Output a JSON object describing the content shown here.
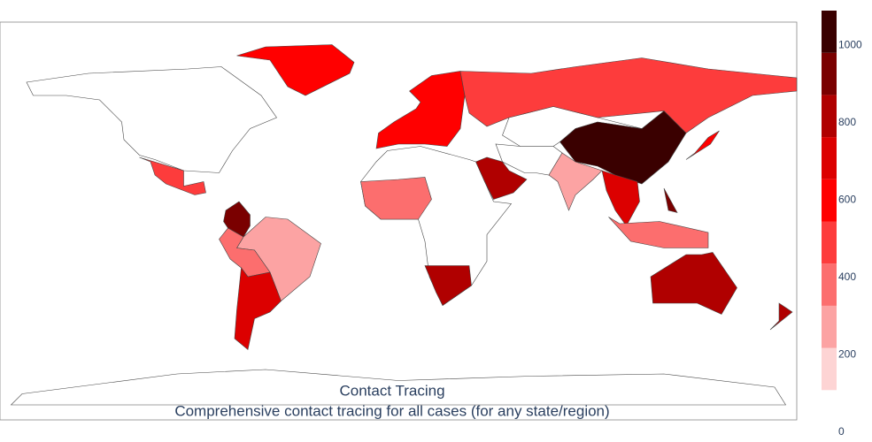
{
  "chart_data": {
    "type": "choropleth",
    "title": "Contact Tracing",
    "subtitle": "Comprehensive contact tracing for all cases (for any state/region)",
    "values": [
      560,
      450,
      900,
      250,
      350,
      750,
      550,
      450,
      1050,
      250,
      850,
      400,
      800,
      700,
      400,
      650,
      900,
      850,
      850
    ],
    "zlim": [
      0,
      1090
    ],
    "zticks": [
      0,
      200,
      400,
      600,
      800,
      1000
    ],
    "color_bins": [
      109,
      218,
      327,
      436,
      545,
      654,
      763,
      872,
      981,
      1090
    ],
    "colors": [
      "#fdd4d4",
      "#fca3a3",
      "#fc6e6e",
      "#fd3c3c",
      "#ff0000",
      "#dc0000",
      "#b00000",
      "#7a0000",
      "#3a0000"
    ]
  }
}
